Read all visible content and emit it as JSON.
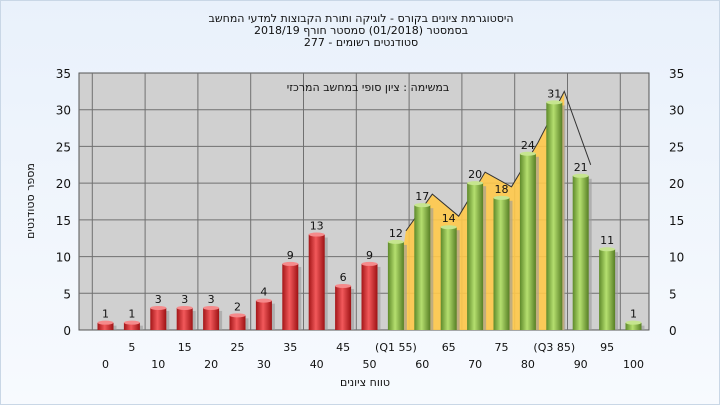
{
  "chart_data": {
    "type": "bar",
    "title_lines": [
      "היסטוגרמת ציונים בקורס - לוגיקה ותורת הקבוצות למדעי המחשב",
      "בסמסטר  (01/2018)  סמסטר חורף  2018/19",
      "סטודנטים רשומים - 277"
    ],
    "annotation": "במשימה : ציון סופי במחשב המרכזי",
    "xlabel": "טווח ציונים",
    "ylabel": "מספר סטודנטים",
    "ylim": [
      0,
      35
    ],
    "yticks": [
      0,
      5,
      10,
      15,
      20,
      25,
      30,
      35
    ],
    "grid": true,
    "categories_upper": [
      "5",
      "15",
      "25",
      "35",
      "45",
      "(Q1 55)",
      "65",
      "75",
      "(Q3 85)",
      "95"
    ],
    "categories_lower": [
      "0",
      "10",
      "20",
      "30",
      "40",
      "50",
      "60",
      "70",
      "80",
      "90",
      "100"
    ],
    "values": [
      1,
      1,
      3,
      3,
      3,
      2,
      4,
      9,
      13,
      6,
      9,
      12,
      17,
      14,
      20,
      18,
      24,
      31,
      21,
      11,
      1
    ],
    "bar_colors": {
      "fail": "#e0393b",
      "pass": "#8cbd4a",
      "quartile_band": "#ffc94a"
    },
    "fail_count": 11,
    "quartile_band_range": [
      11,
      17
    ]
  }
}
